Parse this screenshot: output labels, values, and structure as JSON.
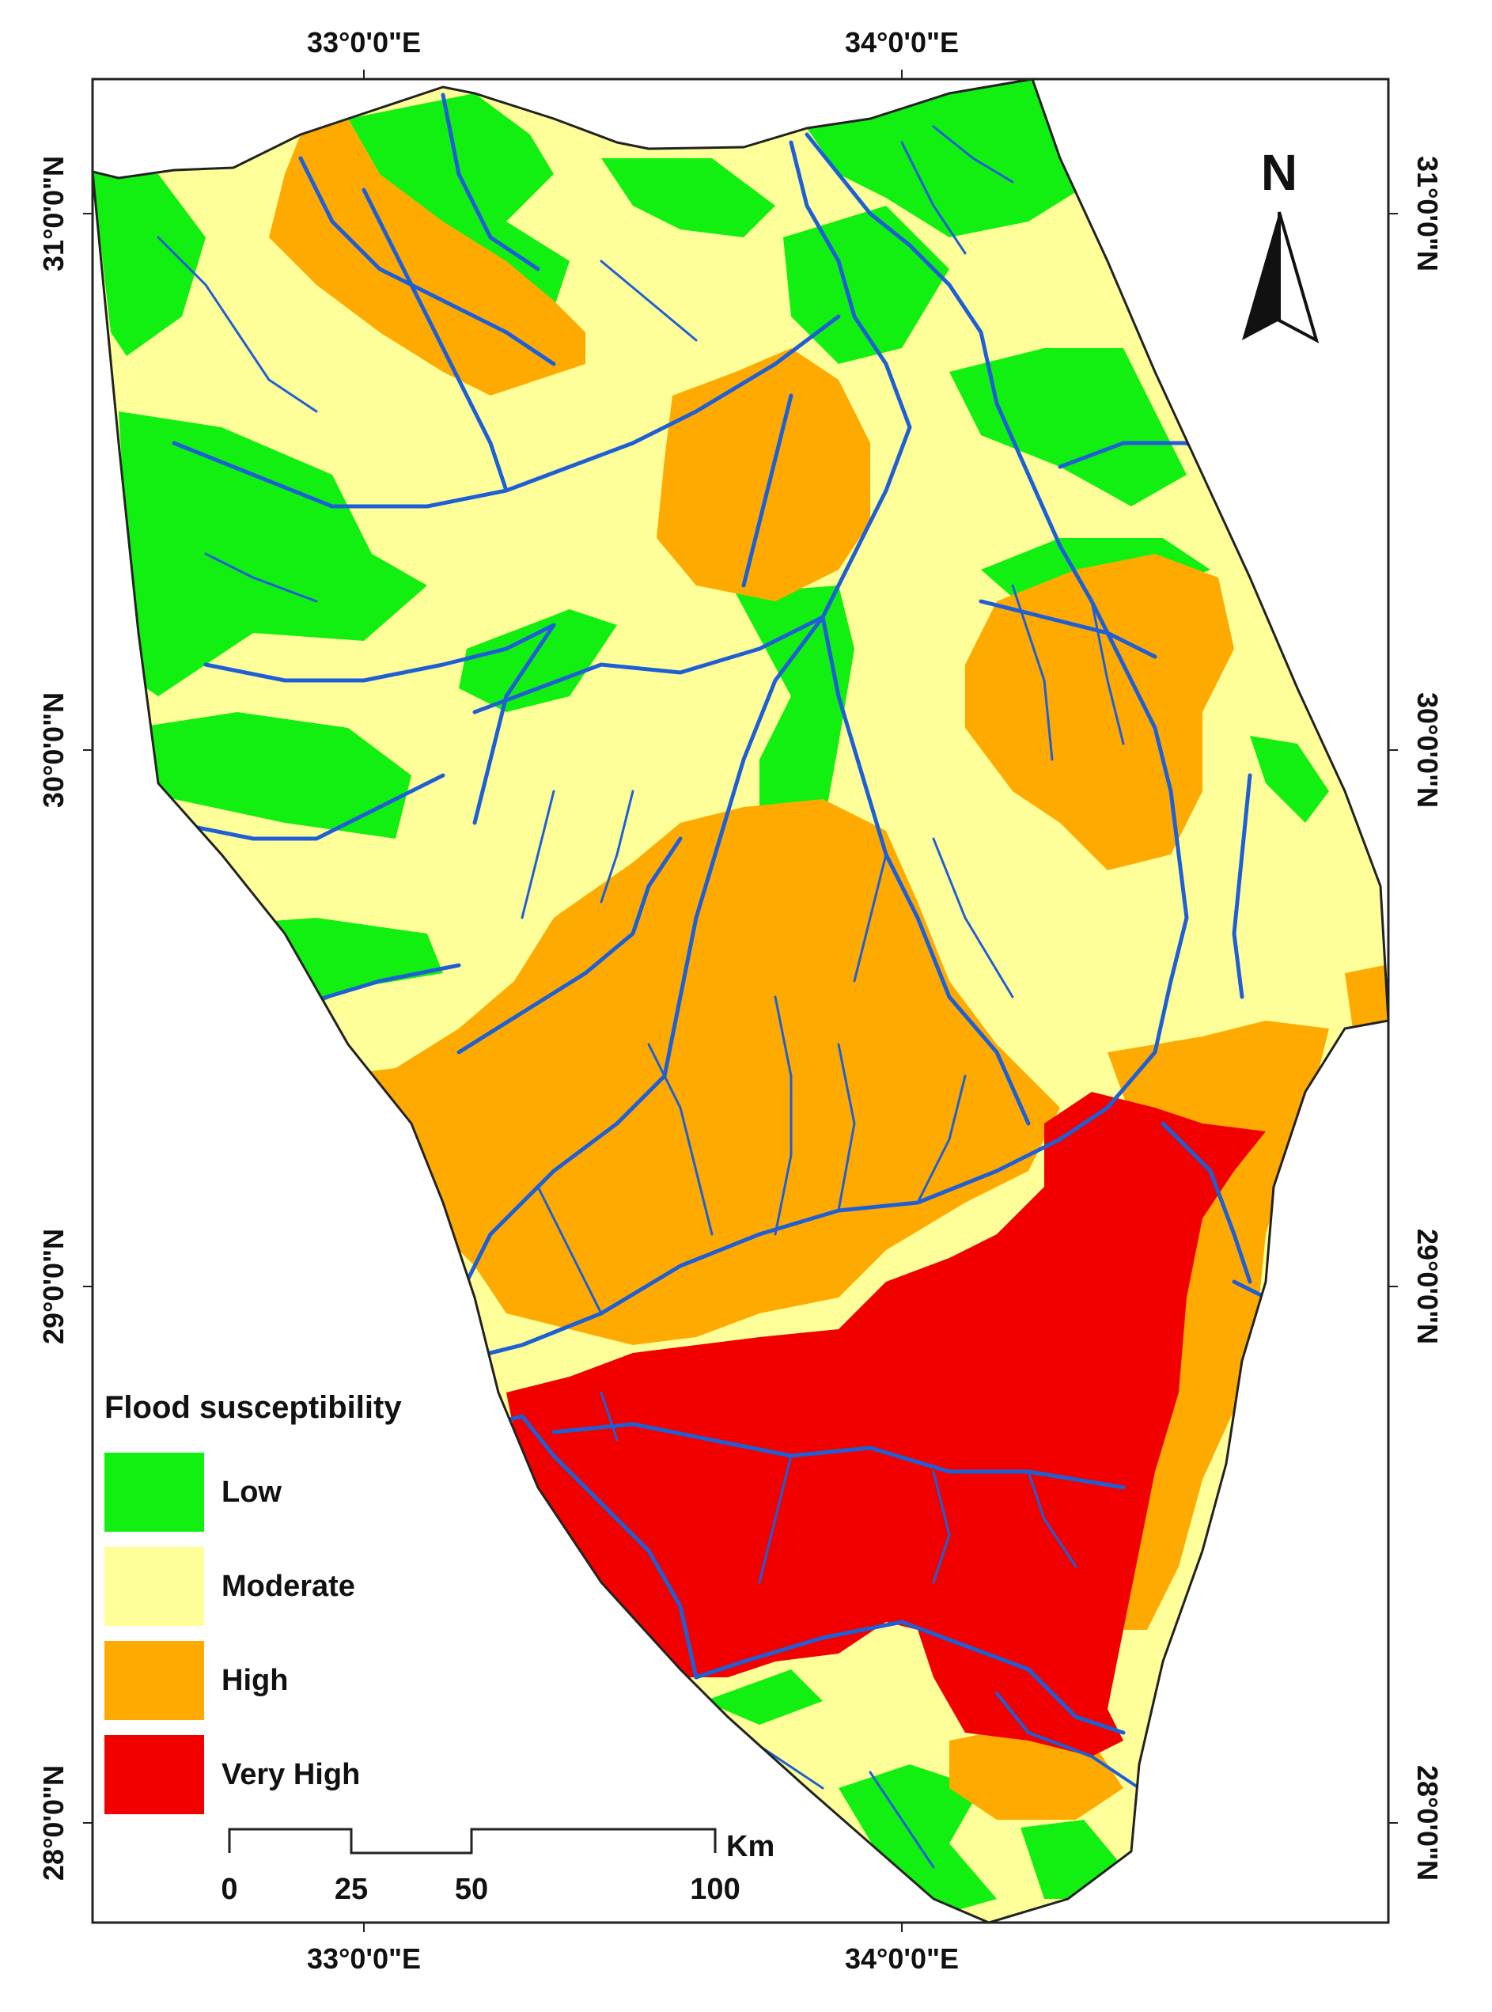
{
  "map": {
    "longitude_labels": [
      "33°0'0\"E",
      "34°0'0\"E"
    ],
    "latitude_labels": [
      "31°0'0\"N",
      "30°0'0\"N",
      "29°0'0\"N",
      "28°0'0\"N"
    ],
    "north_arrow_label": "N"
  },
  "legend": {
    "title": "Flood susceptibility",
    "classes": [
      {
        "label": "Low",
        "color": "#12f012"
      },
      {
        "label": "Moderate",
        "color": "#ffff99"
      },
      {
        "label": "High",
        "color": "#ffaa00"
      },
      {
        "label": "Very High",
        "color": "#f20000"
      }
    ]
  },
  "scale_bar": {
    "ticks": [
      "0",
      "25",
      "50",
      "100"
    ],
    "unit": "Km"
  },
  "colors": {
    "stream": "#1f5fd6",
    "boundary": "#222222"
  }
}
